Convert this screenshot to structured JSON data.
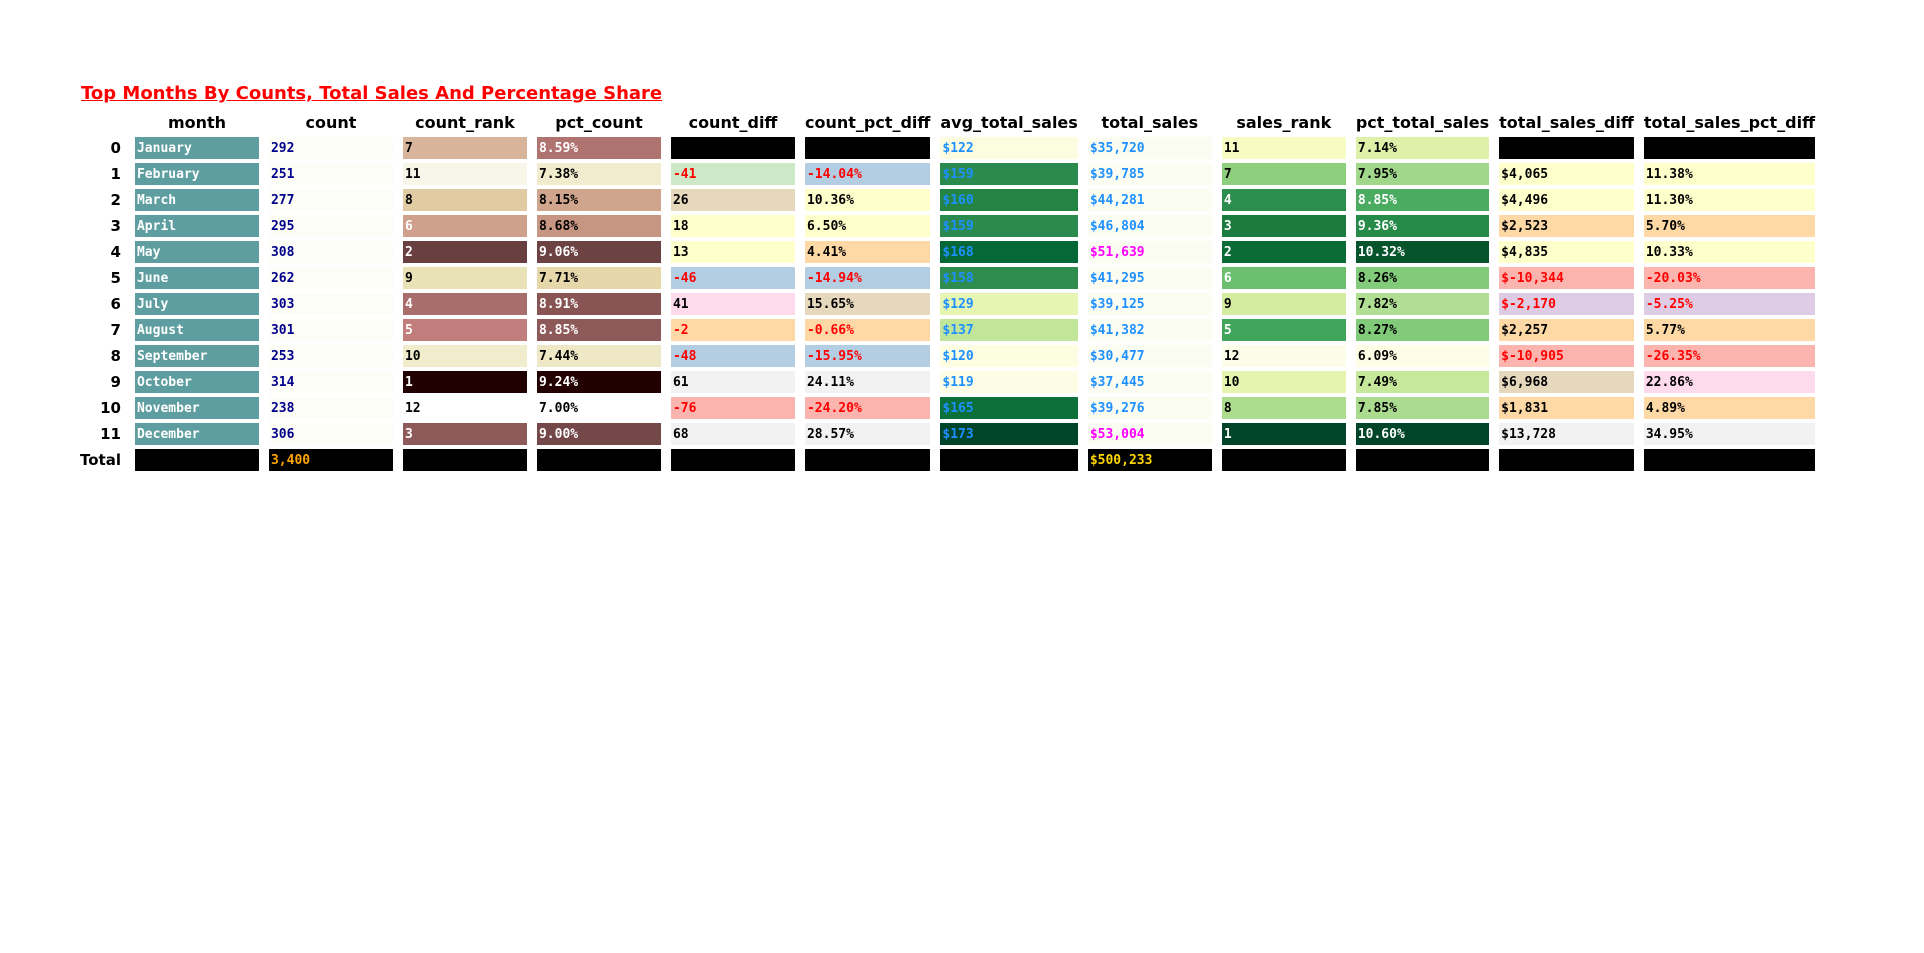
{
  "title": "Top Months By Counts, Total Sales And Percentage Share",
  "columns": [
    "month",
    "count",
    "count_rank",
    "pct_count",
    "count_diff",
    "count_pct_diff",
    "avg_total_sales",
    "total_sales",
    "sales_rank",
    "pct_total_sales",
    "total_sales_diff",
    "total_sales_pct_diff"
  ],
  "rows": [
    {
      "index": "0",
      "cells": [
        {
          "text": "January",
          "bg": "#5f9ea0",
          "color": "#ffffff"
        },
        {
          "text": "292",
          "bg": "#fdfdf8",
          "color": "#00008b"
        },
        {
          "text": "7",
          "bg": "#d8b59a",
          "color": "#000000"
        },
        {
          "text": "8.59%",
          "bg": "#b07470",
          "color": "#ffffff"
        },
        {
          "text": "",
          "bg": "#000000",
          "color": "#000000"
        },
        {
          "text": "",
          "bg": "#000000",
          "color": "#000000"
        },
        {
          "text": "$122",
          "bg": "#fcfce0",
          "color": "#1e90ff"
        },
        {
          "text": "$35,720",
          "bg": "#fcfdf2",
          "color": "#1e90ff"
        },
        {
          "text": "11",
          "bg": "#f9fbc4",
          "color": "#000000"
        },
        {
          "text": "7.14%",
          "bg": "#dff0a9",
          "color": "#000000"
        },
        {
          "text": "",
          "bg": "#000000",
          "color": "#000000"
        },
        {
          "text": "",
          "bg": "#000000",
          "color": "#000000"
        }
      ]
    },
    {
      "index": "1",
      "cells": [
        {
          "text": "February",
          "bg": "#5f9ea0",
          "color": "#ffffff"
        },
        {
          "text": "251",
          "bg": "#fdfdf8",
          "color": "#00008b"
        },
        {
          "text": "11",
          "bg": "#f7f6e9",
          "color": "#000000"
        },
        {
          "text": "7.38%",
          "bg": "#f2ecce",
          "color": "#000000"
        },
        {
          "text": "-41",
          "bg": "#cde9c7",
          "color": "#ff0000"
        },
        {
          "text": "-14.04%",
          "bg": "#b3cde3",
          "color": "#ff0000"
        },
        {
          "text": "$159",
          "bg": "#2b8a4d",
          "color": "#1e90ff"
        },
        {
          "text": "$39,785",
          "bg": "#fcfdf2",
          "color": "#1e90ff"
        },
        {
          "text": "7",
          "bg": "#8ecf7e",
          "color": "#000000"
        },
        {
          "text": "7.95%",
          "bg": "#a0d78b",
          "color": "#000000"
        },
        {
          "text": "$4,065",
          "bg": "#ffffcc",
          "color": "#000000"
        },
        {
          "text": "11.38%",
          "bg": "#ffffcc",
          "color": "#000000"
        }
      ]
    },
    {
      "index": "2",
      "cells": [
        {
          "text": "March",
          "bg": "#5f9ea0",
          "color": "#ffffff"
        },
        {
          "text": "277",
          "bg": "#fdfdf8",
          "color": "#00008b"
        },
        {
          "text": "8",
          "bg": "#e0cba2",
          "color": "#000000"
        },
        {
          "text": "8.15%",
          "bg": "#d0a58d",
          "color": "#000000"
        },
        {
          "text": "26",
          "bg": "#e5d8bd",
          "color": "#000000"
        },
        {
          "text": "10.36%",
          "bg": "#ffffcc",
          "color": "#000000"
        },
        {
          "text": "$160",
          "bg": "#238443",
          "color": "#1e90ff"
        },
        {
          "text": "$44,281",
          "bg": "#fcfdf2",
          "color": "#1e90ff"
        },
        {
          "text": "4",
          "bg": "#2c8e4e",
          "color": "#ffffff"
        },
        {
          "text": "8.85%",
          "bg": "#4aab61",
          "color": "#ffffff"
        },
        {
          "text": "$4,496",
          "bg": "#ffffcc",
          "color": "#000000"
        },
        {
          "text": "11.30%",
          "bg": "#ffffcc",
          "color": "#000000"
        }
      ]
    },
    {
      "index": "3",
      "cells": [
        {
          "text": "April",
          "bg": "#5f9ea0",
          "color": "#ffffff"
        },
        {
          "text": "295",
          "bg": "#fdfdf8",
          "color": "#00008b"
        },
        {
          "text": "6",
          "bg": "#cfa08c",
          "color": "#ffffff"
        },
        {
          "text": "8.68%",
          "bg": "#c79682",
          "color": "#000000"
        },
        {
          "text": "18",
          "bg": "#ffffcc",
          "color": "#000000"
        },
        {
          "text": "6.50%",
          "bg": "#ffffcc",
          "color": "#000000"
        },
        {
          "text": "$159",
          "bg": "#2b8a4d",
          "color": "#1e90ff"
        },
        {
          "text": "$46,804",
          "bg": "#fcfdf2",
          "color": "#1e90ff"
        },
        {
          "text": "3",
          "bg": "#1c7b3e",
          "color": "#ffffff"
        },
        {
          "text": "9.36%",
          "bg": "#268a48",
          "color": "#ffffff"
        },
        {
          "text": "$2,523",
          "bg": "#fed9a6",
          "color": "#000000"
        },
        {
          "text": "5.70%",
          "bg": "#fed9a6",
          "color": "#000000"
        }
      ]
    },
    {
      "index": "4",
      "cells": [
        {
          "text": "May",
          "bg": "#5f9ea0",
          "color": "#ffffff"
        },
        {
          "text": "308",
          "bg": "#fdfdf8",
          "color": "#00008b"
        },
        {
          "text": "2",
          "bg": "#6a3f3f",
          "color": "#ffffff"
        },
        {
          "text": "9.06%",
          "bg": "#6d4242",
          "color": "#ffffff"
        },
        {
          "text": "13",
          "bg": "#ffffcc",
          "color": "#000000"
        },
        {
          "text": "4.41%",
          "bg": "#fed9a6",
          "color": "#000000"
        },
        {
          "text": "$168",
          "bg": "#046937",
          "color": "#1e90ff"
        },
        {
          "text": "$51,639",
          "bg": "#fcfdf2",
          "color": "#ff00ff"
        },
        {
          "text": "2",
          "bg": "#0a6b35",
          "color": "#ffffff"
        },
        {
          "text": "10.32%",
          "bg": "#05542c",
          "color": "#ffffff"
        },
        {
          "text": "$4,835",
          "bg": "#ffffcc",
          "color": "#000000"
        },
        {
          "text": "10.33%",
          "bg": "#ffffcc",
          "color": "#000000"
        }
      ]
    },
    {
      "index": "5",
      "cells": [
        {
          "text": "June",
          "bg": "#5f9ea0",
          "color": "#ffffff"
        },
        {
          "text": "262",
          "bg": "#fdfdf8",
          "color": "#00008b"
        },
        {
          "text": "9",
          "bg": "#e8e2b6",
          "color": "#000000"
        },
        {
          "text": "7.71%",
          "bg": "#e6d7ab",
          "color": "#000000"
        },
        {
          "text": "-46",
          "bg": "#b3cde3",
          "color": "#ff0000"
        },
        {
          "text": "-14.94%",
          "bg": "#b3cde3",
          "color": "#ff0000"
        },
        {
          "text": "$158",
          "bg": "#2e8c4f",
          "color": "#1e90ff"
        },
        {
          "text": "$41,295",
          "bg": "#fcfdf2",
          "color": "#1e90ff"
        },
        {
          "text": "6",
          "bg": "#6bbf6f",
          "color": "#ffffff"
        },
        {
          "text": "8.26%",
          "bg": "#82cb7a",
          "color": "#000000"
        },
        {
          "text": "$-10,344",
          "bg": "#fbb4ae",
          "color": "#ff0000"
        },
        {
          "text": "-20.03%",
          "bg": "#fbb4ae",
          "color": "#ff0000"
        }
      ]
    },
    {
      "index": "6",
      "cells": [
        {
          "text": "July",
          "bg": "#5f9ea0",
          "color": "#ffffff"
        },
        {
          "text": "303",
          "bg": "#fdfdf8",
          "color": "#00008b"
        },
        {
          "text": "4",
          "bg": "#a86e6b",
          "color": "#ffffff"
        },
        {
          "text": "8.91%",
          "bg": "#895454",
          "color": "#ffffff"
        },
        {
          "text": "41",
          "bg": "#fddaec",
          "color": "#000000"
        },
        {
          "text": "15.65%",
          "bg": "#e5d8bd",
          "color": "#000000"
        },
        {
          "text": "$129",
          "bg": "#e6f5b1",
          "color": "#1e90ff"
        },
        {
          "text": "$39,125",
          "bg": "#fcfdf2",
          "color": "#1e90ff"
        },
        {
          "text": "9",
          "bg": "#d4ec9f",
          "color": "#000000"
        },
        {
          "text": "7.82%",
          "bg": "#b0de92",
          "color": "#000000"
        },
        {
          "text": "$-2,170",
          "bg": "#decbe4",
          "color": "#ff0000"
        },
        {
          "text": "-5.25%",
          "bg": "#decbe4",
          "color": "#ff0000"
        }
      ]
    },
    {
      "index": "7",
      "cells": [
        {
          "text": "August",
          "bg": "#5f9ea0",
          "color": "#ffffff"
        },
        {
          "text": "301",
          "bg": "#fdfdf8",
          "color": "#00008b"
        },
        {
          "text": "5",
          "bg": "#c17e7c",
          "color": "#ffffff"
        },
        {
          "text": "8.85%",
          "bg": "#8e5959",
          "color": "#ffffff"
        },
        {
          "text": "-2",
          "bg": "#fed9a6",
          "color": "#ff0000"
        },
        {
          "text": "-0.66%",
          "bg": "#fed9a6",
          "color": "#ff0000"
        },
        {
          "text": "$137",
          "bg": "#c2e699",
          "color": "#1e90ff"
        },
        {
          "text": "$41,382",
          "bg": "#fcfdf2",
          "color": "#1e90ff"
        },
        {
          "text": "5",
          "bg": "#41a65b",
          "color": "#ffffff"
        },
        {
          "text": "8.27%",
          "bg": "#80ca79",
          "color": "#000000"
        },
        {
          "text": "$2,257",
          "bg": "#fed9a6",
          "color": "#000000"
        },
        {
          "text": "5.77%",
          "bg": "#fed9a6",
          "color": "#000000"
        }
      ]
    },
    {
      "index": "8",
      "cells": [
        {
          "text": "September",
          "bg": "#5f9ea0",
          "color": "#ffffff"
        },
        {
          "text": "253",
          "bg": "#fdfdf8",
          "color": "#00008b"
        },
        {
          "text": "10",
          "bg": "#f0eccc",
          "color": "#000000"
        },
        {
          "text": "7.44%",
          "bg": "#efe8c6",
          "color": "#000000"
        },
        {
          "text": "-48",
          "bg": "#b3cde3",
          "color": "#ff0000"
        },
        {
          "text": "-15.95%",
          "bg": "#b3cde3",
          "color": "#ff0000"
        },
        {
          "text": "$120",
          "bg": "#fdfde2",
          "color": "#1e90ff"
        },
        {
          "text": "$30,477",
          "bg": "#fcfdf2",
          "color": "#1e90ff"
        },
        {
          "text": "12",
          "bg": "#fcfde8",
          "color": "#000000"
        },
        {
          "text": "6.09%",
          "bg": "#fefee6",
          "color": "#000000"
        },
        {
          "text": "$-10,905",
          "bg": "#fbb4ae",
          "color": "#ff0000"
        },
        {
          "text": "-26.35%",
          "bg": "#fbb4ae",
          "color": "#ff0000"
        }
      ]
    },
    {
      "index": "9",
      "cells": [
        {
          "text": "October",
          "bg": "#5f9ea0",
          "color": "#ffffff"
        },
        {
          "text": "314",
          "bg": "#fdfdf8",
          "color": "#00008b"
        },
        {
          "text": "1",
          "bg": "#200000",
          "color": "#ffffff"
        },
        {
          "text": "9.24%",
          "bg": "#230000",
          "color": "#ffffff"
        },
        {
          "text": "61",
          "bg": "#f2f2f2",
          "color": "#000000"
        },
        {
          "text": "24.11%",
          "bg": "#f2f2f2",
          "color": "#000000"
        },
        {
          "text": "$119",
          "bg": "#fdfde5",
          "color": "#1e90ff"
        },
        {
          "text": "$37,445",
          "bg": "#fcfdf2",
          "color": "#1e90ff"
        },
        {
          "text": "10",
          "bg": "#e5f4ae",
          "color": "#000000"
        },
        {
          "text": "7.49%",
          "bg": "#c5e89b",
          "color": "#000000"
        },
        {
          "text": "$6,968",
          "bg": "#e5d8bd",
          "color": "#000000"
        },
        {
          "text": "22.86%",
          "bg": "#fddaec",
          "color": "#000000"
        }
      ]
    },
    {
      "index": "10",
      "cells": [
        {
          "text": "November",
          "bg": "#5f9ea0",
          "color": "#ffffff"
        },
        {
          "text": "238",
          "bg": "#fdfdf8",
          "color": "#00008b"
        },
        {
          "text": "12",
          "bg": "#ffffff",
          "color": "#000000"
        },
        {
          "text": "7.00%",
          "bg": "#ffffff",
          "color": "#000000"
        },
        {
          "text": "-76",
          "bg": "#fbb4ae",
          "color": "#ff0000"
        },
        {
          "text": "-24.20%",
          "bg": "#fbb4ae",
          "color": "#ff0000"
        },
        {
          "text": "$165",
          "bg": "#0b7039",
          "color": "#1e90ff"
        },
        {
          "text": "$39,276",
          "bg": "#fcfdf2",
          "color": "#1e90ff"
        },
        {
          "text": "8",
          "bg": "#acdc8e",
          "color": "#000000"
        },
        {
          "text": "7.85%",
          "bg": "#aadb8e",
          "color": "#000000"
        },
        {
          "text": "$1,831",
          "bg": "#fed9a6",
          "color": "#000000"
        },
        {
          "text": "4.89%",
          "bg": "#fed9a6",
          "color": "#000000"
        }
      ]
    },
    {
      "index": "11",
      "cells": [
        {
          "text": "December",
          "bg": "#5f9ea0",
          "color": "#ffffff"
        },
        {
          "text": "306",
          "bg": "#fdfdf8",
          "color": "#00008b"
        },
        {
          "text": "3",
          "bg": "#8e5a59",
          "color": "#ffffff"
        },
        {
          "text": "9.00%",
          "bg": "#744848",
          "color": "#ffffff"
        },
        {
          "text": "68",
          "bg": "#f2f2f2",
          "color": "#000000"
        },
        {
          "text": "28.57%",
          "bg": "#f2f2f2",
          "color": "#000000"
        },
        {
          "text": "$173",
          "bg": "#004529",
          "color": "#1e90ff"
        },
        {
          "text": "$53,004",
          "bg": "#fcfdf2",
          "color": "#ff00ff"
        },
        {
          "text": "1",
          "bg": "#004529",
          "color": "#ffffff"
        },
        {
          "text": "10.60%",
          "bg": "#004529",
          "color": "#ffffff"
        },
        {
          "text": "$13,728",
          "bg": "#f2f2f2",
          "color": "#000000"
        },
        {
          "text": "34.95%",
          "bg": "#f2f2f2",
          "color": "#000000"
        }
      ]
    },
    {
      "index": "Total",
      "cells": [
        {
          "text": "",
          "bg": "#000000",
          "color": "#000000"
        },
        {
          "text": "3,400",
          "bg": "#000000",
          "color": "#ffa500"
        },
        {
          "text": "",
          "bg": "#000000",
          "color": "#000000"
        },
        {
          "text": "",
          "bg": "#000000",
          "color": "#000000"
        },
        {
          "text": "",
          "bg": "#000000",
          "color": "#000000"
        },
        {
          "text": "",
          "bg": "#000000",
          "color": "#000000"
        },
        {
          "text": "",
          "bg": "#000000",
          "color": "#000000"
        },
        {
          "text": "$500,233",
          "bg": "#000000",
          "color": "#ffd700"
        },
        {
          "text": "",
          "bg": "#000000",
          "color": "#000000"
        },
        {
          "text": "",
          "bg": "#000000",
          "color": "#000000"
        },
        {
          "text": "",
          "bg": "#000000",
          "color": "#000000"
        },
        {
          "text": "",
          "bg": "#000000",
          "color": "#000000"
        }
      ]
    }
  ]
}
